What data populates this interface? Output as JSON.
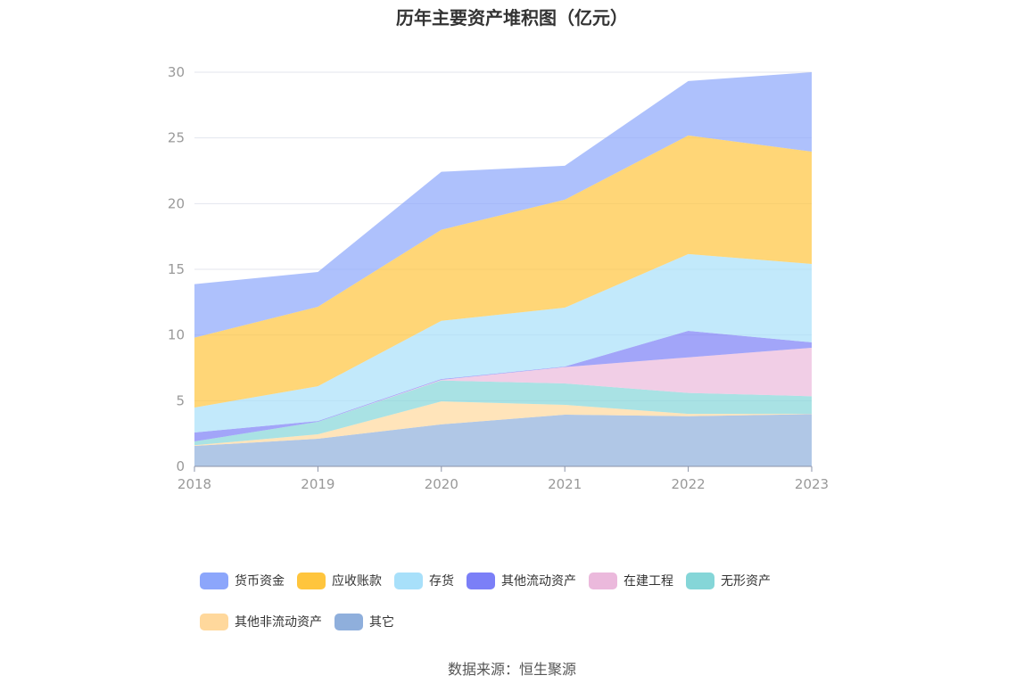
{
  "chart_data": {
    "type": "area",
    "stacked": true,
    "title": "历年主要资产堆积图（亿元）",
    "x": [
      "2018",
      "2019",
      "2020",
      "2021",
      "2022",
      "2023"
    ],
    "ylim": [
      0,
      30
    ],
    "yticks": [
      "0",
      "5",
      "10",
      "15",
      "20",
      "25",
      "30"
    ],
    "grid": true,
    "legend_position": "bottom",
    "series": [
      {
        "name": "其它",
        "color": "#8fafdc",
        "values": [
          1.56,
          2.1,
          3.2,
          3.94,
          3.82,
          3.98
        ]
      },
      {
        "name": "其他非流动资产",
        "color": "#ffd89c",
        "values": [
          0.05,
          0.34,
          1.75,
          0.74,
          0.18,
          0.02
        ]
      },
      {
        "name": "无形资产",
        "color": "#85d6d8",
        "values": [
          0.29,
          0.95,
          1.59,
          1.63,
          1.59,
          1.34
        ]
      },
      {
        "name": "在建工程",
        "color": "#ebb9dc",
        "values": [
          0.0,
          0.0,
          0.05,
          1.25,
          2.71,
          3.69
        ]
      },
      {
        "name": "其他流动资产",
        "color": "#7b7ff7",
        "values": [
          0.68,
          0.06,
          0.06,
          0.04,
          2.02,
          0.41
        ]
      },
      {
        "name": "存货",
        "color": "#a8e0fa",
        "values": [
          1.9,
          2.65,
          4.43,
          4.48,
          5.84,
          5.97
        ]
      },
      {
        "name": "应收账款",
        "color": "#ffc53d",
        "values": [
          5.32,
          6.05,
          6.93,
          8.22,
          9.03,
          8.55
        ]
      },
      {
        "name": "货币资金",
        "color": "#8ca6fb",
        "values": [
          4.07,
          2.65,
          4.41,
          2.58,
          4.14,
          6.04
        ]
      }
    ],
    "legend_order": [
      "货币资金",
      "应收账款",
      "存货",
      "其他流动资产",
      "在建工程",
      "无形资产",
      "其他非流动资产",
      "其它"
    ]
  },
  "source": "数据来源：恒生聚源"
}
